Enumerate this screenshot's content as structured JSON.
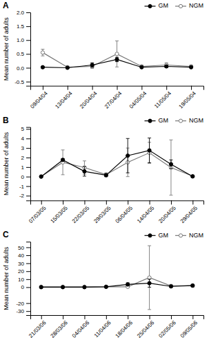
{
  "chart_data": [
    {
      "type": "line",
      "title": "A",
      "y_label": "Mean number of adults",
      "categories": [
        "09/04/04",
        "13/04/04",
        "20/04/04",
        "27/04/04",
        "04/05/04",
        "11/05/04",
        "19/05/04"
      ],
      "series": [
        {
          "name": "GM",
          "color": "#000000",
          "marker": "filled-circle",
          "values": [
            0.02,
            0.0,
            0.1,
            0.3,
            0.02,
            0.05,
            0.02
          ],
          "errors": [
            0.03,
            0.02,
            0.08,
            0.08,
            0.02,
            0.04,
            0.02
          ]
        },
        {
          "name": "NGM",
          "color": "#777777",
          "marker": "open-circle",
          "values": [
            0.55,
            0.02,
            0.05,
            0.5,
            0.05,
            0.1,
            0.05
          ],
          "errors": [
            0.12,
            0.04,
            0.07,
            0.47,
            0.04,
            0.08,
            0.04
          ]
        }
      ],
      "ylim": [
        -0.65,
        2.0
      ],
      "yticks": [
        -0.5,
        {
          "value": 0.0,
          "label": "0.0"
        },
        0.5,
        {
          "value": 1.0,
          "label": "1.0"
        },
        1.5,
        {
          "value": 2.0,
          "label": "2.0"
        }
      ],
      "grid": false,
      "legend": "upper right"
    },
    {
      "type": "line",
      "title": "B",
      "y_label": "Mean number of adults",
      "categories": [
        "07/03/05",
        "15/03/05",
        "22/03/05",
        "29/03/05",
        "06/04/05",
        "14/04/05",
        "20/04/05",
        "29/04/05"
      ],
      "series": [
        {
          "name": "GM",
          "color": "#000000",
          "marker": "filled-circle",
          "values": [
            0.0,
            1.75,
            0.55,
            0.15,
            2.2,
            2.75,
            1.3,
            0.02
          ],
          "errors": [
            0.02,
            0.15,
            0.5,
            0.15,
            1.8,
            1.3,
            0.45,
            0.02
          ]
        },
        {
          "name": "NGM",
          "color": "#777777",
          "marker": "open-circle",
          "values": [
            0.02,
            1.5,
            0.95,
            0.2,
            1.5,
            2.5,
            0.95,
            0.05
          ],
          "errors": [
            0.02,
            1.3,
            0.7,
            0.2,
            1.5,
            1.1,
            2.9,
            0.04
          ]
        }
      ],
      "ylim": [
        -2.5,
        5.2
      ],
      "yticks": [
        -2,
        -1,
        0,
        1,
        2,
        3,
        4,
        5
      ],
      "grid": false,
      "legend": "upper right"
    },
    {
      "type": "line",
      "title": "C",
      "y_label": "Mean number of adults",
      "categories": [
        "21/03/06",
        "28/03/06",
        "04/04/06",
        "11/04/06",
        "18/04/06",
        "25/04/06",
        "02/05/06",
        "09/05/06"
      ],
      "series": [
        {
          "name": "GM",
          "color": "#000000",
          "marker": "filled-circle",
          "values": [
            0.0,
            0.0,
            0.0,
            0.5,
            3.5,
            5.0,
            1.0,
            2.0
          ],
          "errors": [
            0.5,
            0.5,
            0.5,
            0.5,
            2.0,
            5.0,
            1.0,
            1.5
          ]
        },
        {
          "name": "NGM",
          "color": "#777777",
          "marker": "open-circle",
          "values": [
            0.5,
            0.5,
            0.5,
            0.5,
            0.5,
            12.0,
            1.5,
            2.0
          ],
          "errors": [
            0.5,
            0.5,
            0.5,
            0.5,
            0.5,
            40.0,
            1.5,
            1.5
          ]
        }
      ],
      "ylim": [
        -35,
        57
      ],
      "yticks": [
        -30,
        -20,
        0,
        10,
        20,
        30,
        40,
        50
      ],
      "grid": false,
      "legend": "upper right"
    }
  ]
}
